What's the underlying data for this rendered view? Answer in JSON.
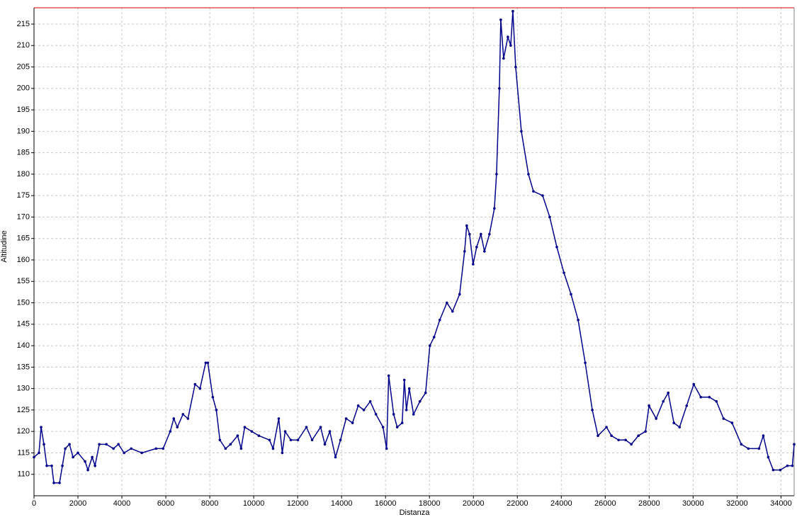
{
  "chart_data": {
    "type": "line",
    "x_label": "Distanza",
    "y_label": "Altitudine",
    "xlim": [
      0,
      34600
    ],
    "ylim": [
      105,
      218.8
    ],
    "xticks": [
      0,
      2000,
      4000,
      6000,
      8000,
      10000,
      12000,
      14000,
      16000,
      18000,
      20000,
      22000,
      24000,
      26000,
      28000,
      30000,
      32000,
      34000
    ],
    "yticks": [
      110,
      115,
      120,
      125,
      130,
      135,
      140,
      145,
      150,
      155,
      160,
      165,
      170,
      175,
      180,
      185,
      190,
      195,
      200,
      205,
      210,
      215
    ],
    "grid": true,
    "series": [
      {
        "color": "#00008b",
        "x": [
          0,
          226,
          323,
          452,
          581,
          807,
          904,
          1162,
          1292,
          1421,
          1614,
          1776,
          2000,
          2325,
          2454,
          2648,
          2777,
          2971,
          3294,
          3616,
          3842,
          4100,
          4424,
          4908,
          5554,
          5877,
          6200,
          6361,
          6522,
          6781,
          7007,
          7330,
          7556,
          7814,
          7911,
          8137,
          8298,
          8460,
          8718,
          8944,
          9267,
          9428,
          9590,
          9913,
          10235,
          10720,
          10881,
          11140,
          11301,
          11431,
          11689,
          12012,
          12399,
          12658,
          13045,
          13239,
          13465,
          13723,
          13949,
          14207,
          14498,
          14756,
          15015,
          15305,
          15563,
          15886,
          16048,
          16145,
          16371,
          16532,
          16758,
          16855,
          16952,
          17081,
          17275,
          17565,
          17824,
          18017,
          18211,
          18469,
          18792,
          19050,
          19373,
          19599,
          19696,
          19825,
          19986,
          20148,
          20342,
          20503,
          20729,
          20955,
          21052,
          21182,
          21246,
          21375,
          21569,
          21698,
          21795,
          21924,
          22182,
          22505,
          22731,
          23151,
          23474,
          23797,
          24120,
          24443,
          24766,
          25089,
          25412,
          25670,
          26058,
          26284,
          26607,
          26929,
          27188,
          27510,
          27833,
          27994,
          28318,
          28640,
          28866,
          29125,
          29383,
          29706,
          30029,
          30352,
          30739,
          31062,
          31385,
          31773,
          32193,
          32515,
          32999,
          33194,
          33420,
          33646,
          33968,
          34291,
          34517,
          34600
        ],
        "values": [
          114,
          115,
          121,
          117,
          112,
          112,
          108,
          108,
          112,
          116,
          117,
          114,
          115,
          113,
          111,
          114,
          112,
          117,
          117,
          116,
          117,
          115,
          116,
          115,
          116,
          116,
          120,
          123,
          121,
          124,
          123,
          131,
          130,
          136,
          136,
          128,
          125,
          118,
          116,
          117,
          119,
          116,
          121,
          120,
          119,
          118,
          116,
          123,
          115,
          120,
          118,
          118,
          121,
          118,
          121,
          117,
          120,
          114,
          118,
          123,
          122,
          126,
          125,
          127,
          124,
          121,
          116,
          133,
          124,
          121,
          122,
          132,
          125,
          130,
          124,
          127,
          129,
          140,
          142,
          146,
          150,
          148,
          152,
          162,
          168,
          166,
          159,
          163,
          166,
          162,
          166,
          172,
          180,
          200,
          216,
          207,
          212,
          210,
          218,
          205,
          190,
          180,
          176,
          175,
          170,
          163,
          157,
          152,
          146,
          136,
          125,
          119,
          121,
          119,
          118,
          118,
          117,
          119,
          120,
          126,
          123,
          127,
          129,
          122,
          121,
          126,
          131,
          128,
          128,
          127,
          123,
          122,
          117,
          116,
          116,
          119,
          114,
          111,
          111,
          112,
          112,
          117
        ]
      }
    ]
  }
}
